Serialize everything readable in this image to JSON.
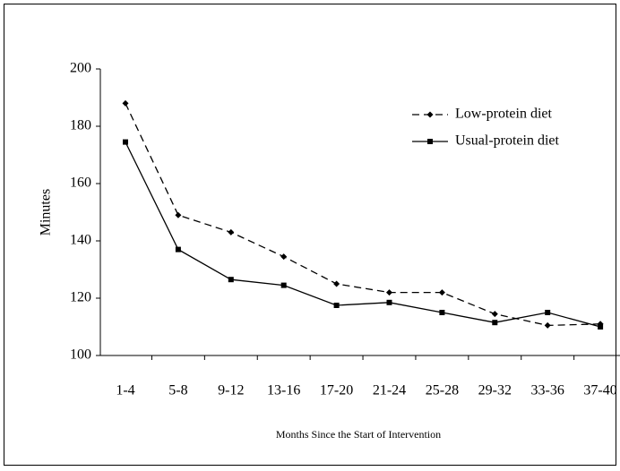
{
  "chart_data": {
    "type": "line",
    "y_label": "Minutes",
    "x_label": "Months Since the Start of Intervention",
    "categories": [
      "1-4",
      "5-8",
      "9-12",
      "13-16",
      "17-20",
      "21-24",
      "25-28",
      "29-32",
      "33-36",
      "37-40"
    ],
    "series": [
      {
        "name": "Low-protein diet",
        "color": "#000000",
        "line_style": "dashed",
        "marker": "diamond",
        "values": [
          188,
          149,
          143,
          134.5,
          125,
          122,
          122,
          114.5,
          110.5,
          111
        ]
      },
      {
        "name": "Usual-protein diet",
        "color": "#000000",
        "line_style": "solid",
        "marker": "square",
        "values": [
          174.5,
          137,
          126.5,
          124.5,
          117.5,
          118.5,
          115,
          111.5,
          115,
          110
        ]
      }
    ],
    "ylim": [
      100,
      200
    ],
    "yticks": [
      100,
      120,
      140,
      160,
      180,
      200
    ],
    "grid": false,
    "legend_position": "upper right"
  }
}
